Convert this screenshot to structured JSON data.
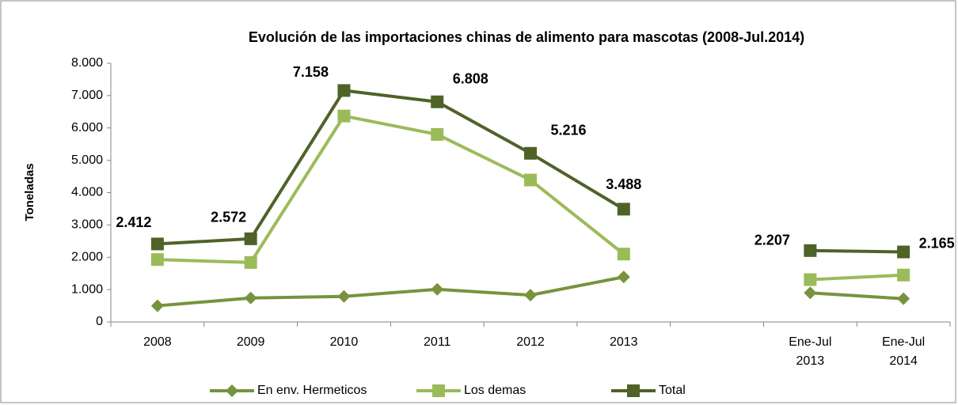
{
  "chart_data": {
    "type": "line",
    "title": "Evolución de las importaciones chinas de alimento para mascotas (2008-Jul.2014)",
    "y_label": "Toneladas",
    "categories": [
      "2008",
      "2009",
      "2010",
      "2011",
      "2012",
      "2013",
      null,
      "Ene-Jul 2013",
      "Ene-Jul 2014"
    ],
    "series": [
      {
        "name": "En env. Hermeticos",
        "color": "#77933c",
        "marker": "diamond",
        "values": [
          500,
          740,
          790,
          1010,
          830,
          1390,
          null,
          900,
          720
        ]
      },
      {
        "name": "Los demas",
        "color": "#9bbb59",
        "marker": "square",
        "values": [
          1930,
          1840,
          6370,
          5800,
          4390,
          2100,
          null,
          1310,
          1450
        ]
      },
      {
        "name": "Total",
        "color": "#4f6228",
        "marker": "square",
        "values": [
          2412,
          2572,
          7158,
          6808,
          5216,
          3488,
          null,
          2207,
          2165
        ],
        "value_labels": [
          "2.412",
          "2.572",
          "7.158",
          "6.808",
          "5.216",
          "3.488",
          null,
          "2.207",
          "2.165"
        ]
      }
    ],
    "ylim": [
      0,
      8000
    ],
    "yticks": [
      0,
      {
        "value": 1000,
        "label": "1.000"
      },
      {
        "value": 2000,
        "label": "2.000"
      },
      {
        "value": 3000,
        "label": "3.000"
      },
      {
        "value": 4000,
        "label": "4.000"
      },
      {
        "value": 5000,
        "label": "5.000"
      },
      {
        "value": 6000,
        "label": "6.000"
      },
      {
        "value": 7000,
        "label": "7.000"
      },
      {
        "value": 8000,
        "label": "8.000"
      }
    ],
    "legend": "bottom"
  }
}
